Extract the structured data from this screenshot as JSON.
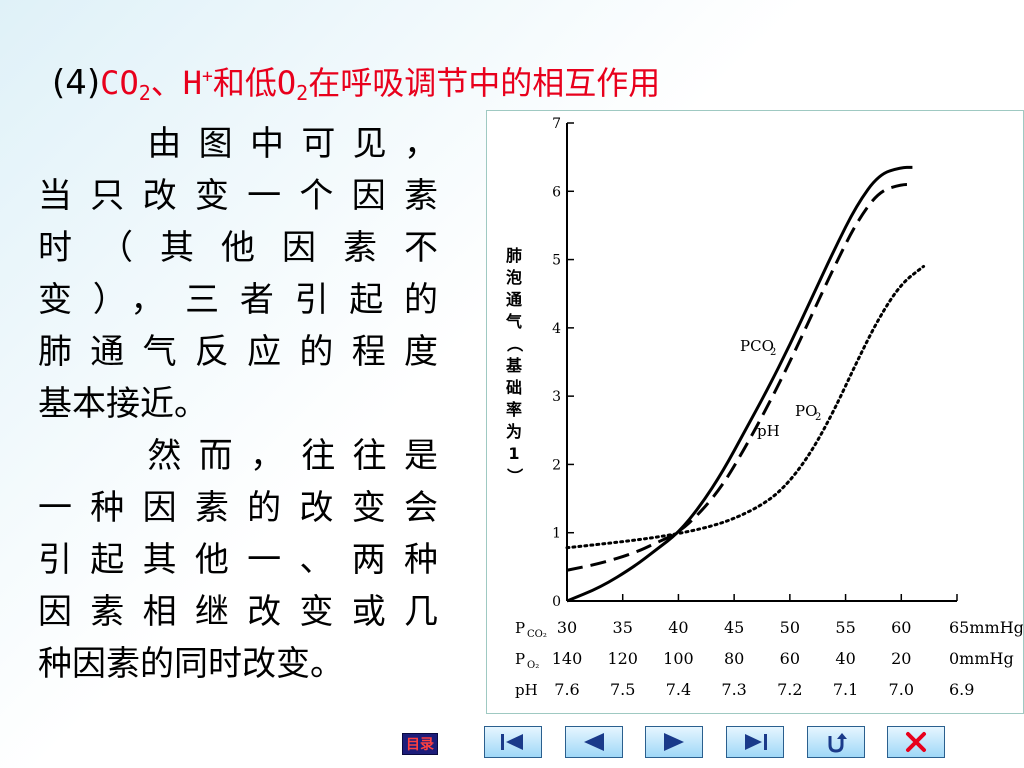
{
  "title": {
    "prefix": "(4)",
    "co": "CO",
    "co_sub": "2",
    "sep": "、H",
    "h_sup": "+",
    "mid": "和低O",
    "o_sub": "2",
    "rest": "在呼吸调节中的相互作用"
  },
  "paragraphs": [
    "由图中可见，当只改变一个因素时（其他因素不变），三者引起的肺通气反应的程度基本接近。",
    "然而，往往是一种因素的改变会引起其他一、两种因素相继改变或几种因素的同时改变。"
  ],
  "body_lines": [
    [
      "由图中可见，",
      true
    ],
    [
      "当只改变一个因素",
      false
    ],
    [
      "时（其他因素不",
      false
    ],
    [
      "变），三者引起的",
      false
    ],
    [
      "肺通气反应的程度",
      false
    ],
    [
      "基本接近。",
      false
    ],
    [
      "然而，往往是",
      true
    ],
    [
      "一种因素的改变会",
      false
    ],
    [
      "引起其他一、两种",
      false
    ],
    [
      "因素相继改变或几",
      false
    ],
    [
      "种因素的同时改变。",
      false
    ]
  ],
  "chart_data": {
    "type": "line",
    "ylabel": "肺泡通气（基础率为1）",
    "ylim": [
      0,
      7
    ],
    "yticks": [
      "0",
      "1",
      "2",
      "3",
      "4",
      "5",
      "6",
      "7"
    ],
    "x_axes": [
      {
        "label": "P",
        "label_sub": "CO₂",
        "ticks": [
          "30",
          "35",
          "40",
          "45",
          "50",
          "55",
          "60",
          "65mmHg"
        ]
      },
      {
        "label": "P",
        "label_sub": "O₂",
        "ticks": [
          "140",
          "120",
          "100",
          "80",
          "60",
          "40",
          "20",
          "0mmHg"
        ]
      },
      {
        "label": "pH",
        "label_sub": "",
        "ticks": [
          "7.6",
          "7.5",
          "7.4",
          "7.3",
          "7.2",
          "7.1",
          "7.0",
          "6.9"
        ]
      }
    ],
    "xlim": [
      30,
      65
    ],
    "series": [
      {
        "name": "PCO₂",
        "style": "solid",
        "x": [
          30,
          33,
          36,
          38,
          40,
          42,
          44,
          46,
          48,
          50,
          52,
          54,
          56,
          58,
          60,
          61
        ],
        "y": [
          0.0,
          0.2,
          0.5,
          0.75,
          1.0,
          1.4,
          1.9,
          2.5,
          3.1,
          3.75,
          4.45,
          5.15,
          5.8,
          6.25,
          6.35,
          6.35
        ]
      },
      {
        "name": "pH",
        "style": "dashed",
        "x": [
          30,
          33,
          36,
          38,
          40,
          42,
          44,
          46,
          48,
          50,
          52,
          54,
          56,
          58,
          60,
          61
        ],
        "y": [
          0.45,
          0.55,
          0.7,
          0.85,
          1.0,
          1.3,
          1.7,
          2.25,
          2.85,
          3.5,
          4.2,
          4.9,
          5.55,
          6.0,
          6.1,
          6.1
        ]
      },
      {
        "name": "PO₂",
        "style": "dotted",
        "x": [
          30,
          34,
          38,
          42,
          45,
          48,
          50,
          52,
          54,
          56,
          58,
          60,
          62
        ],
        "y": [
          0.78,
          0.85,
          0.93,
          1.05,
          1.2,
          1.45,
          1.75,
          2.2,
          2.8,
          3.5,
          4.15,
          4.65,
          4.9
        ]
      }
    ],
    "series_labels": [
      {
        "text": "PCO",
        "sub": "2",
        "series": "PCO₂"
      },
      {
        "text": "pH",
        "sub": "",
        "series": "pH"
      },
      {
        "text": "PO",
        "sub": "2",
        "series": "PO₂"
      }
    ]
  },
  "nav": {
    "menu_label": "目录"
  },
  "colors": {
    "title_red": "#e8001c",
    "nav_fill": "#9fd8f7",
    "nav_border": "#2a5f8e"
  }
}
